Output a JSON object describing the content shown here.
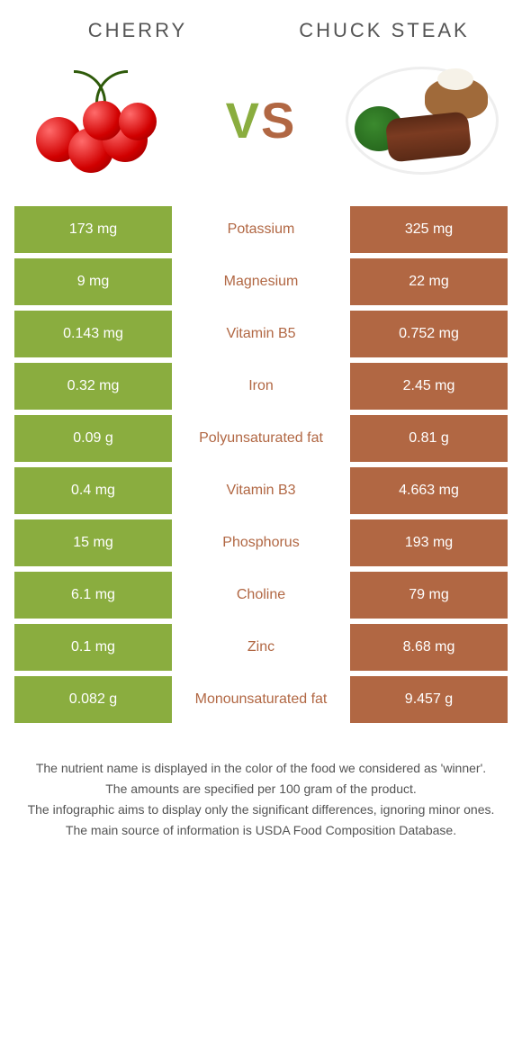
{
  "left": {
    "name": "CHERRY",
    "color": "#8aad3f"
  },
  "right": {
    "name": "CHUCK STEAK",
    "color": "#b16743"
  },
  "vs": {
    "v": "V",
    "s": "S",
    "v_color": "#8aad3f",
    "s_color": "#b16743"
  },
  "nutrients": [
    {
      "label": "Potassium",
      "left": "173 mg",
      "right": "325 mg",
      "winner": "right"
    },
    {
      "label": "Magnesium",
      "left": "9 mg",
      "right": "22 mg",
      "winner": "right"
    },
    {
      "label": "Vitamin B5",
      "left": "0.143 mg",
      "right": "0.752 mg",
      "winner": "right"
    },
    {
      "label": "Iron",
      "left": "0.32 mg",
      "right": "2.45 mg",
      "winner": "right"
    },
    {
      "label": "Polyunsaturated fat",
      "left": "0.09 g",
      "right": "0.81 g",
      "winner": "right"
    },
    {
      "label": "Vitamin B3",
      "left": "0.4 mg",
      "right": "4.663 mg",
      "winner": "right"
    },
    {
      "label": "Phosphorus",
      "left": "15 mg",
      "right": "193 mg",
      "winner": "right"
    },
    {
      "label": "Choline",
      "left": "6.1 mg",
      "right": "79 mg",
      "winner": "right"
    },
    {
      "label": "Zinc",
      "left": "0.1 mg",
      "right": "8.68 mg",
      "winner": "right"
    },
    {
      "label": "Monounsaturated fat",
      "left": "0.082 g",
      "right": "9.457 g",
      "winner": "right"
    }
  ],
  "footer": [
    "The nutrient name is displayed in the color of the food we considered as 'winner'.",
    "The amounts are specified per 100 gram of the product.",
    "The infographic aims to display only the significant differences, ignoring minor ones.",
    "The main source of information is USDA Food Composition Database."
  ]
}
